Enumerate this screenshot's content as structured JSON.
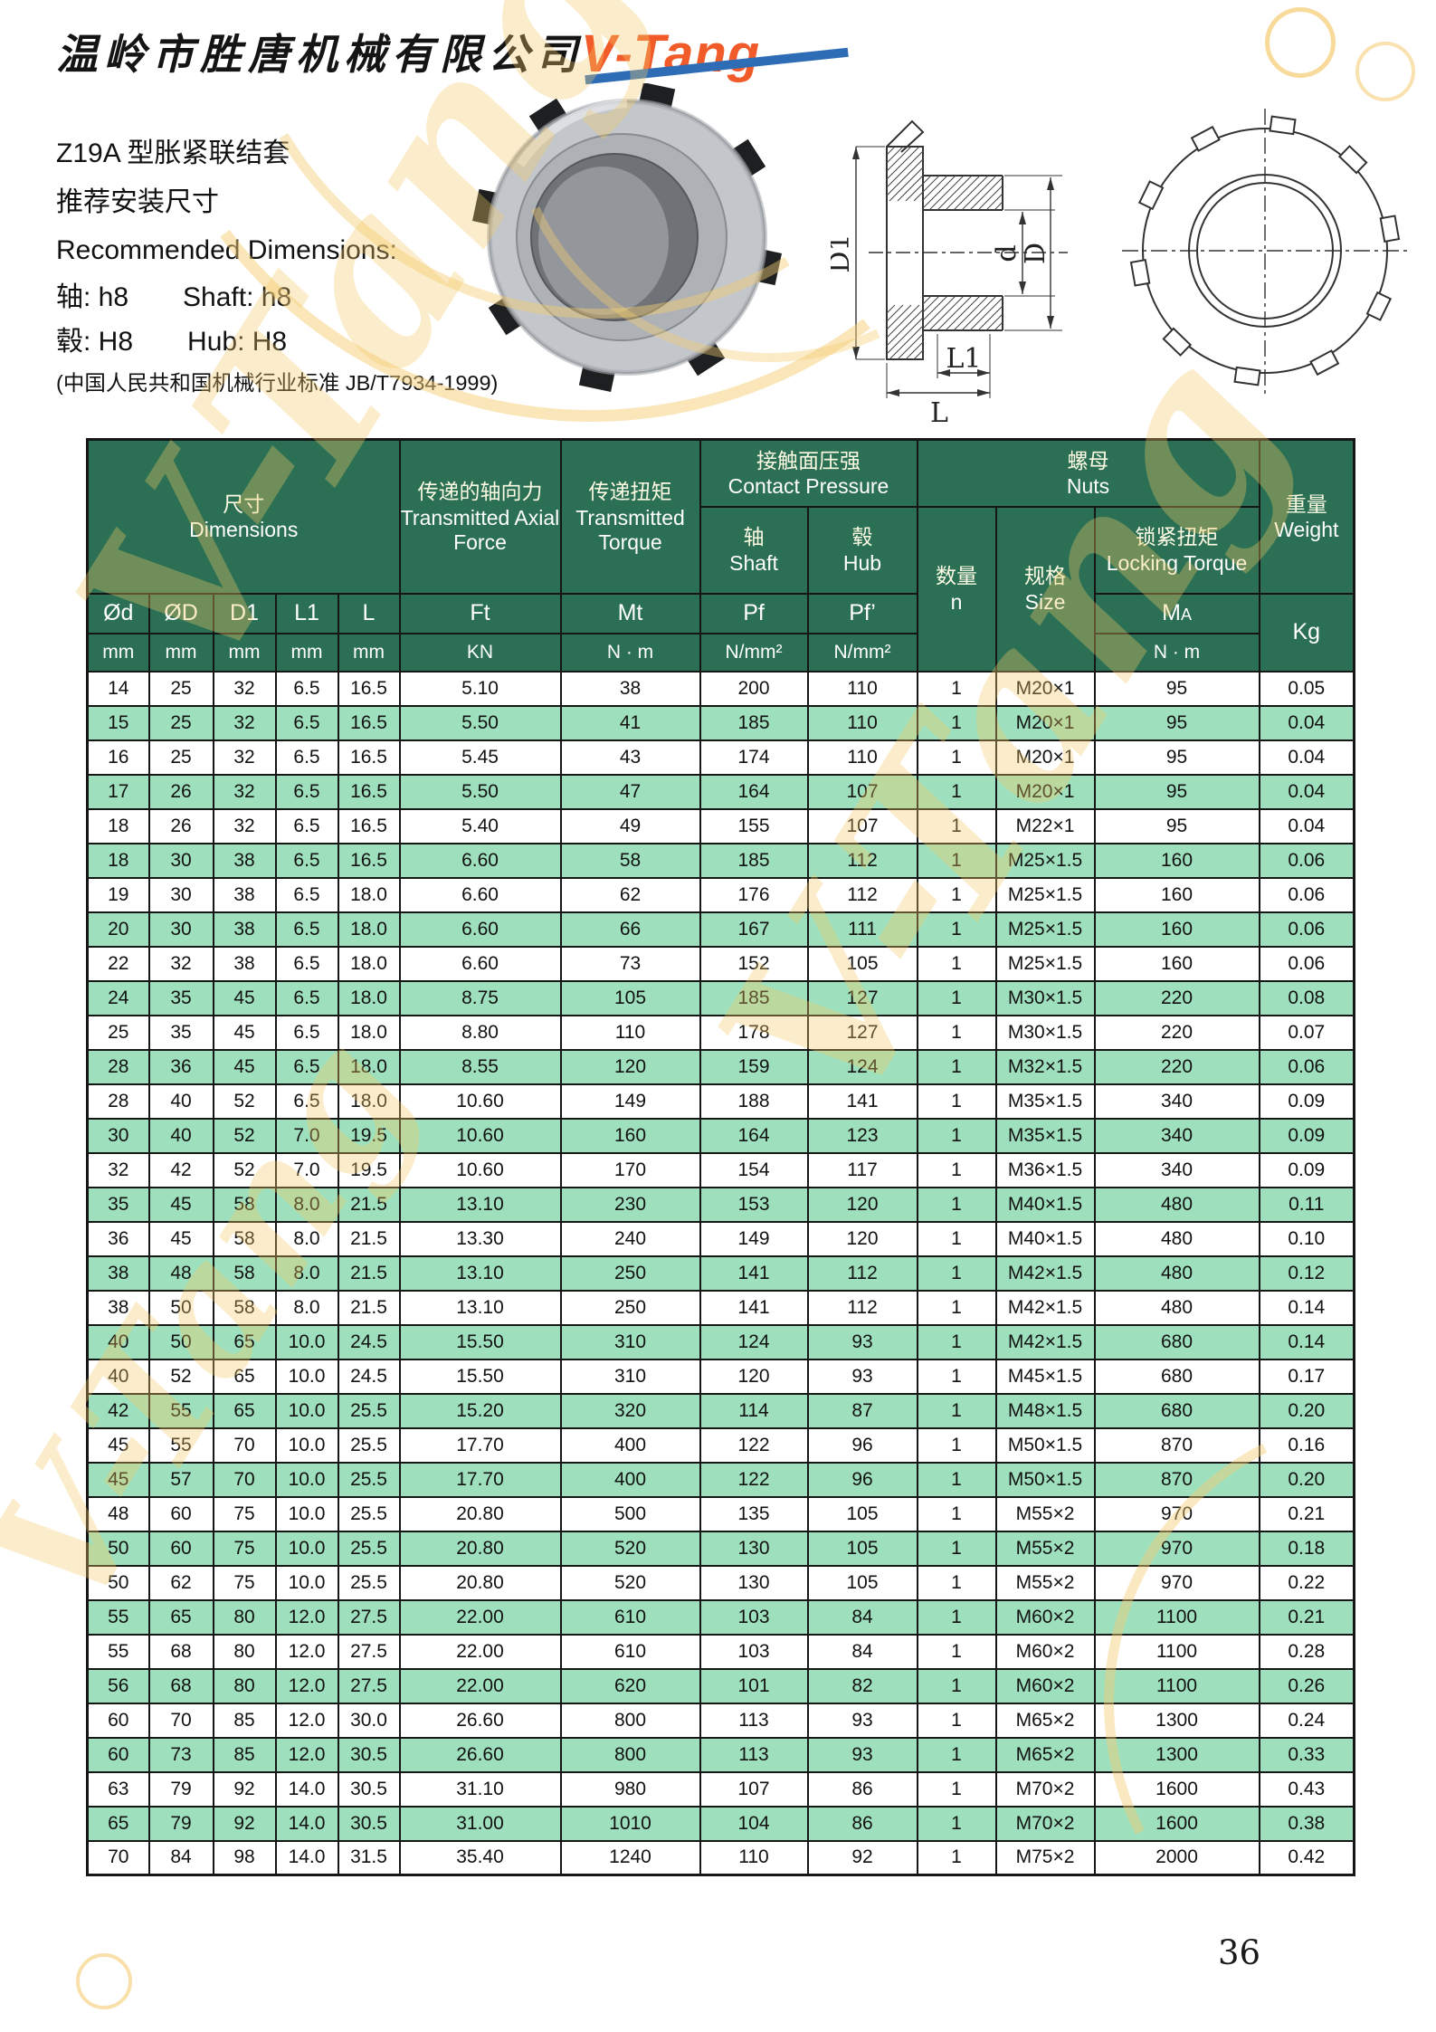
{
  "page": {
    "number": "36"
  },
  "header": {
    "company_name": "温岭市胜唐机械有限公司",
    "logo_text": "V-Tang",
    "logo_orange": "#f15a29",
    "logo_blue": "#2e6cb5"
  },
  "product": {
    "title": "Z19A 型胀紧联结套",
    "subtitle_cn": "推荐安装尺寸",
    "subtitle_en": "Recommended Dimensions:",
    "shaft_cn": "轴: h8",
    "shaft_en": "Shaft: h8",
    "hub_cn": "毂:  H8",
    "hub_en": "Hub: H8",
    "standard": "(中国人民共和国机械行业标准 JB/T7934-1999)"
  },
  "drawing": {
    "labels": {
      "d1": "D1",
      "d": "d",
      "D": "D",
      "l1": "L1",
      "l": "L"
    }
  },
  "table": {
    "groups": {
      "dimensions_cn": "尺寸",
      "dimensions_en": "Dimensions",
      "axial_cn": "传递的轴向力",
      "axial_en": "Transmitted Axial Force",
      "torque_cn": "传递扭矩",
      "torque_en": "Transmitted Torque",
      "contact_cn": "接触面压强",
      "contact_en": "Contact Pressure",
      "shaft_cn": "轴",
      "shaft_en": "Shaft",
      "hub_cn": "毂",
      "hub_en": "Hub",
      "nuts_cn": "螺母",
      "nuts_en": "Nuts",
      "qty_cn": "数量",
      "qty_sym": "n",
      "size_cn": "规格",
      "size_en": "Size",
      "locking_cn": "锁紧扭矩",
      "locking_en": "Locking Torque",
      "weight_cn": "重量",
      "weight_en": "Weight"
    },
    "symbols": {
      "od": "Ød",
      "oD": "ØD",
      "d1": "D1",
      "l1": "L1",
      "l": "L",
      "ft": "Ft",
      "mt": "Mt",
      "pf": "Pf",
      "pf2": "Pf’",
      "ma_m": "M",
      "ma_a": "A",
      "kg": "Kg"
    },
    "units": {
      "mm": "mm",
      "kn": "KN",
      "nm": "N · m",
      "nmm2": "N/mm²"
    },
    "rows": [
      [
        "14",
        "25",
        "32",
        "6.5",
        "16.5",
        "5.10",
        "38",
        "200",
        "110",
        "1",
        "M20×1",
        "95",
        "0.05"
      ],
      [
        "15",
        "25",
        "32",
        "6.5",
        "16.5",
        "5.50",
        "41",
        "185",
        "110",
        "1",
        "M20×1",
        "95",
        "0.04"
      ],
      [
        "16",
        "25",
        "32",
        "6.5",
        "16.5",
        "5.45",
        "43",
        "174",
        "110",
        "1",
        "M20×1",
        "95",
        "0.04"
      ],
      [
        "17",
        "26",
        "32",
        "6.5",
        "16.5",
        "5.50",
        "47",
        "164",
        "107",
        "1",
        "M20×1",
        "95",
        "0.04"
      ],
      [
        "18",
        "26",
        "32",
        "6.5",
        "16.5",
        "5.40",
        "49",
        "155",
        "107",
        "1",
        "M22×1",
        "95",
        "0.04"
      ],
      [
        "18",
        "30",
        "38",
        "6.5",
        "16.5",
        "6.60",
        "58",
        "185",
        "112",
        "1",
        "M25×1.5",
        "160",
        "0.06"
      ],
      [
        "19",
        "30",
        "38",
        "6.5",
        "18.0",
        "6.60",
        "62",
        "176",
        "112",
        "1",
        "M25×1.5",
        "160",
        "0.06"
      ],
      [
        "20",
        "30",
        "38",
        "6.5",
        "18.0",
        "6.60",
        "66",
        "167",
        "111",
        "1",
        "M25×1.5",
        "160",
        "0.06"
      ],
      [
        "22",
        "32",
        "38",
        "6.5",
        "18.0",
        "6.60",
        "73",
        "152",
        "105",
        "1",
        "M25×1.5",
        "160",
        "0.06"
      ],
      [
        "24",
        "35",
        "45",
        "6.5",
        "18.0",
        "8.75",
        "105",
        "185",
        "127",
        "1",
        "M30×1.5",
        "220",
        "0.08"
      ],
      [
        "25",
        "35",
        "45",
        "6.5",
        "18.0",
        "8.80",
        "110",
        "178",
        "127",
        "1",
        "M30×1.5",
        "220",
        "0.07"
      ],
      [
        "28",
        "36",
        "45",
        "6.5",
        "18.0",
        "8.55",
        "120",
        "159",
        "124",
        "1",
        "M32×1.5",
        "220",
        "0.06"
      ],
      [
        "28",
        "40",
        "52",
        "6.5",
        "18.0",
        "10.60",
        "149",
        "188",
        "141",
        "1",
        "M35×1.5",
        "340",
        "0.09"
      ],
      [
        "30",
        "40",
        "52",
        "7.0",
        "19.5",
        "10.60",
        "160",
        "164",
        "123",
        "1",
        "M35×1.5",
        "340",
        "0.09"
      ],
      [
        "32",
        "42",
        "52",
        "7.0",
        "19.5",
        "10.60",
        "170",
        "154",
        "117",
        "1",
        "M36×1.5",
        "340",
        "0.09"
      ],
      [
        "35",
        "45",
        "58",
        "8.0",
        "21.5",
        "13.10",
        "230",
        "153",
        "120",
        "1",
        "M40×1.5",
        "480",
        "0.11"
      ],
      [
        "36",
        "45",
        "58",
        "8.0",
        "21.5",
        "13.30",
        "240",
        "149",
        "120",
        "1",
        "M40×1.5",
        "480",
        "0.10"
      ],
      [
        "38",
        "48",
        "58",
        "8.0",
        "21.5",
        "13.10",
        "250",
        "141",
        "112",
        "1",
        "M42×1.5",
        "480",
        "0.12"
      ],
      [
        "38",
        "50",
        "58",
        "8.0",
        "21.5",
        "13.10",
        "250",
        "141",
        "112",
        "1",
        "M42×1.5",
        "480",
        "0.14"
      ],
      [
        "40",
        "50",
        "65",
        "10.0",
        "24.5",
        "15.50",
        "310",
        "124",
        "93",
        "1",
        "M42×1.5",
        "680",
        "0.14"
      ],
      [
        "40",
        "52",
        "65",
        "10.0",
        "24.5",
        "15.50",
        "310",
        "120",
        "93",
        "1",
        "M45×1.5",
        "680",
        "0.17"
      ],
      [
        "42",
        "55",
        "65",
        "10.0",
        "25.5",
        "15.20",
        "320",
        "114",
        "87",
        "1",
        "M48×1.5",
        "680",
        "0.20"
      ],
      [
        "45",
        "55",
        "70",
        "10.0",
        "25.5",
        "17.70",
        "400",
        "122",
        "96",
        "1",
        "M50×1.5",
        "870",
        "0.16"
      ],
      [
        "45",
        "57",
        "70",
        "10.0",
        "25.5",
        "17.70",
        "400",
        "122",
        "96",
        "1",
        "M50×1.5",
        "870",
        "0.20"
      ],
      [
        "48",
        "60",
        "75",
        "10.0",
        "25.5",
        "20.80",
        "500",
        "135",
        "105",
        "1",
        "M55×2",
        "970",
        "0.21"
      ],
      [
        "50",
        "60",
        "75",
        "10.0",
        "25.5",
        "20.80",
        "520",
        "130",
        "105",
        "1",
        "M55×2",
        "970",
        "0.18"
      ],
      [
        "50",
        "62",
        "75",
        "10.0",
        "25.5",
        "20.80",
        "520",
        "130",
        "105",
        "1",
        "M55×2",
        "970",
        "0.22"
      ],
      [
        "55",
        "65",
        "80",
        "12.0",
        "27.5",
        "22.00",
        "610",
        "103",
        "84",
        "1",
        "M60×2",
        "1100",
        "0.21"
      ],
      [
        "55",
        "68",
        "80",
        "12.0",
        "27.5",
        "22.00",
        "610",
        "103",
        "84",
        "1",
        "M60×2",
        "1100",
        "0.28"
      ],
      [
        "56",
        "68",
        "80",
        "12.0",
        "27.5",
        "22.00",
        "620",
        "101",
        "82",
        "1",
        "M60×2",
        "1100",
        "0.26"
      ],
      [
        "60",
        "70",
        "85",
        "12.0",
        "30.0",
        "26.60",
        "800",
        "113",
        "93",
        "1",
        "M65×2",
        "1300",
        "0.24"
      ],
      [
        "60",
        "73",
        "85",
        "12.0",
        "30.5",
        "26.60",
        "800",
        "113",
        "93",
        "1",
        "M65×2",
        "1300",
        "0.33"
      ],
      [
        "63",
        "79",
        "92",
        "14.0",
        "30.5",
        "31.10",
        "980",
        "107",
        "86",
        "1",
        "M70×2",
        "1600",
        "0.43"
      ],
      [
        "65",
        "79",
        "92",
        "14.0",
        "30.5",
        "31.00",
        "1010",
        "104",
        "86",
        "1",
        "M70×2",
        "1600",
        "0.38"
      ],
      [
        "70",
        "84",
        "98",
        "14.0",
        "31.5",
        "35.40",
        "1240",
        "110",
        "92",
        "1",
        "M75×2",
        "2000",
        "0.42"
      ]
    ]
  }
}
